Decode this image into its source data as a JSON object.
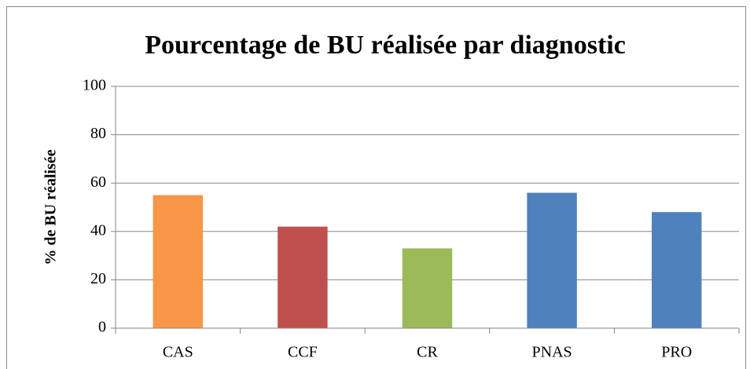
{
  "chart_data": {
    "type": "bar",
    "title": "Pourcentage de BU réalisée par diagnostic",
    "y_label": "% de BU réalisée",
    "categories": [
      "CAS",
      "CCF",
      "CR",
      "PNAS",
      "PRO"
    ],
    "values": [
      55,
      42,
      33,
      56,
      48
    ],
    "colors": [
      "#f79646",
      "#c0504d",
      "#9bbb59",
      "#4f81bd",
      "#4f81bd"
    ],
    "ylim": [
      0,
      100
    ],
    "yticks": [
      0,
      20,
      40,
      60,
      80,
      100
    ],
    "grid": true
  }
}
